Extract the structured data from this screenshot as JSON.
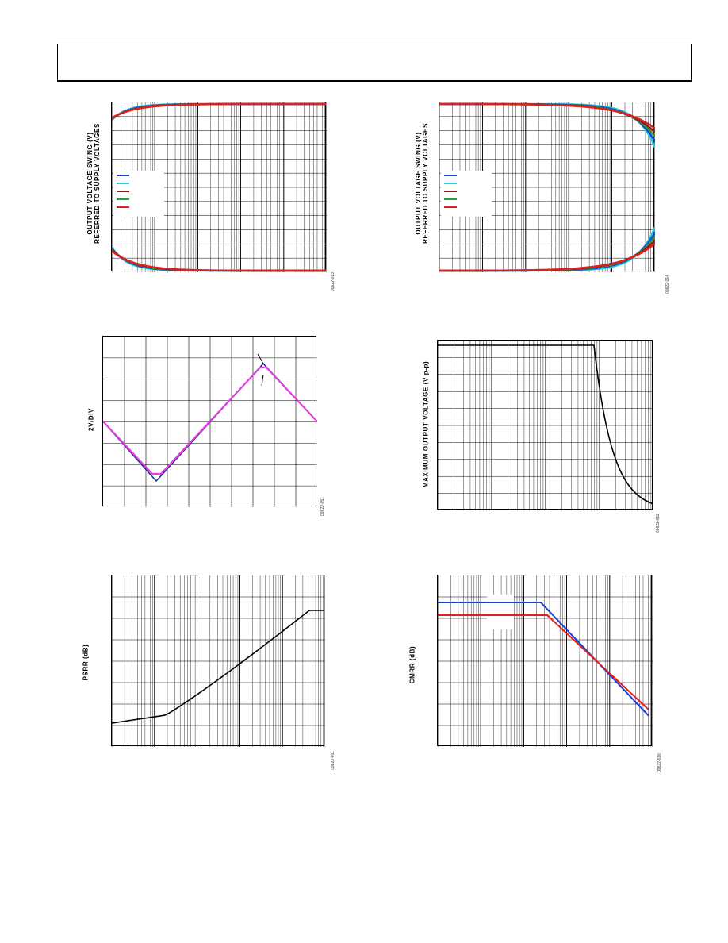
{
  "header": {
    "text": ""
  },
  "panels": [
    {
      "id": "p1",
      "ylabel_line1": "OUTPUT VOLTAGE SWING (V)",
      "ylabel_line2": "REFERRED TO SUPPLY VOLTAGES",
      "figure_id": "09622-013",
      "legend_colors": [
        "#1f3fd0",
        "#1fd0e0",
        "#8b1a1a",
        "#20a040",
        "#e02020"
      ]
    },
    {
      "id": "p2",
      "ylabel_line1": "OUTPUT VOLTAGE SWING (V)",
      "ylabel_line2": "REFERRED TO SUPPLY VOLTAGES",
      "figure_id": "09622-014",
      "legend_colors": [
        "#1f3fd0",
        "#1fd0e0",
        "#8b1a1a",
        "#20a040",
        "#e02020"
      ]
    },
    {
      "id": "p3",
      "ylabel_line1": "2V/DIV",
      "figure_id": "09622-051"
    },
    {
      "id": "p4",
      "ylabel_line1": "MAXIMUM OUTPUT VOLTAGE (V p-p)",
      "figure_id": "09622-012"
    },
    {
      "id": "p5",
      "ylabel_line1": "PSRR (dB)",
      "figure_id": "09622-011"
    },
    {
      "id": "p6",
      "ylabel_line1": "CMRR (dB)",
      "figure_id": "09622-016"
    }
  ],
  "chart_data": [
    {
      "type": "line",
      "title": "",
      "xscale": "log",
      "grid": true,
      "legend": "left, no visible entry text",
      "series": [
        {
          "color": "#1fd0e0",
          "shape": "saturating curves near both supply rails"
        },
        {
          "color": "#1f3fd0",
          "shape": "saturating curves near both supply rails"
        },
        {
          "color": "#8b1a1a",
          "shape": "saturating curves near both supply rails"
        },
        {
          "color": "#e02020",
          "shape": "saturating curves near both supply rails"
        }
      ]
    },
    {
      "type": "line",
      "title": "",
      "xscale": "log",
      "grid": true,
      "legend": "left, no visible entry text",
      "series": [
        {
          "color": "#1fd0e0",
          "shape": "flat rails diverging at right edge"
        },
        {
          "color": "#1f3fd0",
          "shape": "flat rails diverging at right edge"
        },
        {
          "color": "#8b1a1a",
          "shape": "flat rails diverging at right edge"
        },
        {
          "color": "#e02020",
          "shape": "flat rails diverging at right edge"
        }
      ]
    },
    {
      "type": "line",
      "title": "",
      "grid": true,
      "series": [
        {
          "color": "#1f2f8f",
          "shape": "triangle wave with overshoot"
        },
        {
          "color": "#e040e0",
          "shape": "triangle wave clipped"
        }
      ]
    },
    {
      "type": "line",
      "title": "",
      "xscale": "log",
      "grid": true,
      "series": [
        {
          "color": "#000000",
          "shape": "flat then steep roll-off"
        }
      ]
    },
    {
      "type": "line",
      "title": "",
      "xscale": "log",
      "grid": true,
      "series": [
        {
          "color": "#000000",
          "shape": "rising with frequency"
        }
      ]
    },
    {
      "type": "line",
      "title": "",
      "xscale": "log",
      "grid": true,
      "series": [
        {
          "color": "#1f3fd0",
          "shape": "flat then falling"
        },
        {
          "color": "#e02020",
          "shape": "flat then falling"
        }
      ]
    }
  ]
}
